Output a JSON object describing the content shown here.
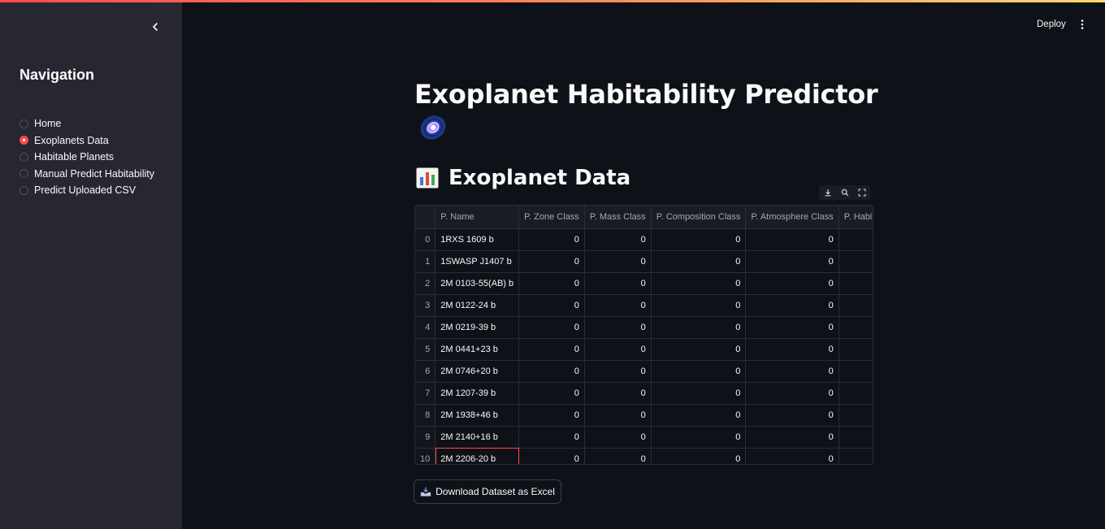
{
  "sidebar": {
    "title": "Navigation",
    "collapse_icon": "chevron-left-icon",
    "items": [
      {
        "label": "Home",
        "selected": false
      },
      {
        "label": "Exoplanets Data",
        "selected": true
      },
      {
        "label": "Habitable Planets",
        "selected": false
      },
      {
        "label": "Manual Predict Habitability",
        "selected": false
      },
      {
        "label": "Predict Uploaded CSV",
        "selected": false
      }
    ]
  },
  "header": {
    "deploy_label": "Deploy",
    "menu_icon": "vertical-dots-icon"
  },
  "main": {
    "title": "Exoplanet Habitability Predictor",
    "title_icon": "galaxy-icon",
    "section_title": "Exoplanet Data",
    "section_icon": "bar-chart-icon",
    "toolbar_icons": [
      "download-icon",
      "search-icon",
      "fullscreen-icon"
    ],
    "table": {
      "columns": [
        "",
        "P. Name",
        "P. Zone Class",
        "P. Mass Class",
        "P. Composition Class",
        "P. Atmosphere Class",
        "P. Habitable"
      ],
      "rows": [
        {
          "idx": "0",
          "name": "1RXS 1609 b",
          "zone": "0",
          "mass": "0",
          "comp": "0",
          "atmo": "0",
          "hab": ""
        },
        {
          "idx": "1",
          "name": "1SWASP J1407 b",
          "zone": "0",
          "mass": "0",
          "comp": "0",
          "atmo": "0",
          "hab": ""
        },
        {
          "idx": "2",
          "name": "2M 0103-55(AB) b",
          "zone": "0",
          "mass": "0",
          "comp": "0",
          "atmo": "0",
          "hab": ""
        },
        {
          "idx": "3",
          "name": "2M 0122-24 b",
          "zone": "0",
          "mass": "0",
          "comp": "0",
          "atmo": "0",
          "hab": ""
        },
        {
          "idx": "4",
          "name": "2M 0219-39 b",
          "zone": "0",
          "mass": "0",
          "comp": "0",
          "atmo": "0",
          "hab": ""
        },
        {
          "idx": "5",
          "name": "2M 0441+23 b",
          "zone": "0",
          "mass": "0",
          "comp": "0",
          "atmo": "0",
          "hab": ""
        },
        {
          "idx": "6",
          "name": "2M 0746+20 b",
          "zone": "0",
          "mass": "0",
          "comp": "0",
          "atmo": "0",
          "hab": ""
        },
        {
          "idx": "7",
          "name": "2M 1207-39 b",
          "zone": "0",
          "mass": "0",
          "comp": "0",
          "atmo": "0",
          "hab": ""
        },
        {
          "idx": "8",
          "name": "2M 1938+46 b",
          "zone": "0",
          "mass": "0",
          "comp": "0",
          "atmo": "0",
          "hab": ""
        },
        {
          "idx": "9",
          "name": "2M 2140+16 b",
          "zone": "0",
          "mass": "0",
          "comp": "0",
          "atmo": "0",
          "hab": ""
        },
        {
          "idx": "10",
          "name": "2M 2206-20 b",
          "zone": "0",
          "mass": "0",
          "comp": "0",
          "atmo": "0",
          "hab": "",
          "selected": true
        }
      ]
    },
    "download_label": "Download Dataset as Excel",
    "download_icon": "inbox-tray-icon"
  },
  "colors": {
    "accent": "#ff4b4b",
    "background": "#0e1117",
    "sidebar": "#262730"
  }
}
